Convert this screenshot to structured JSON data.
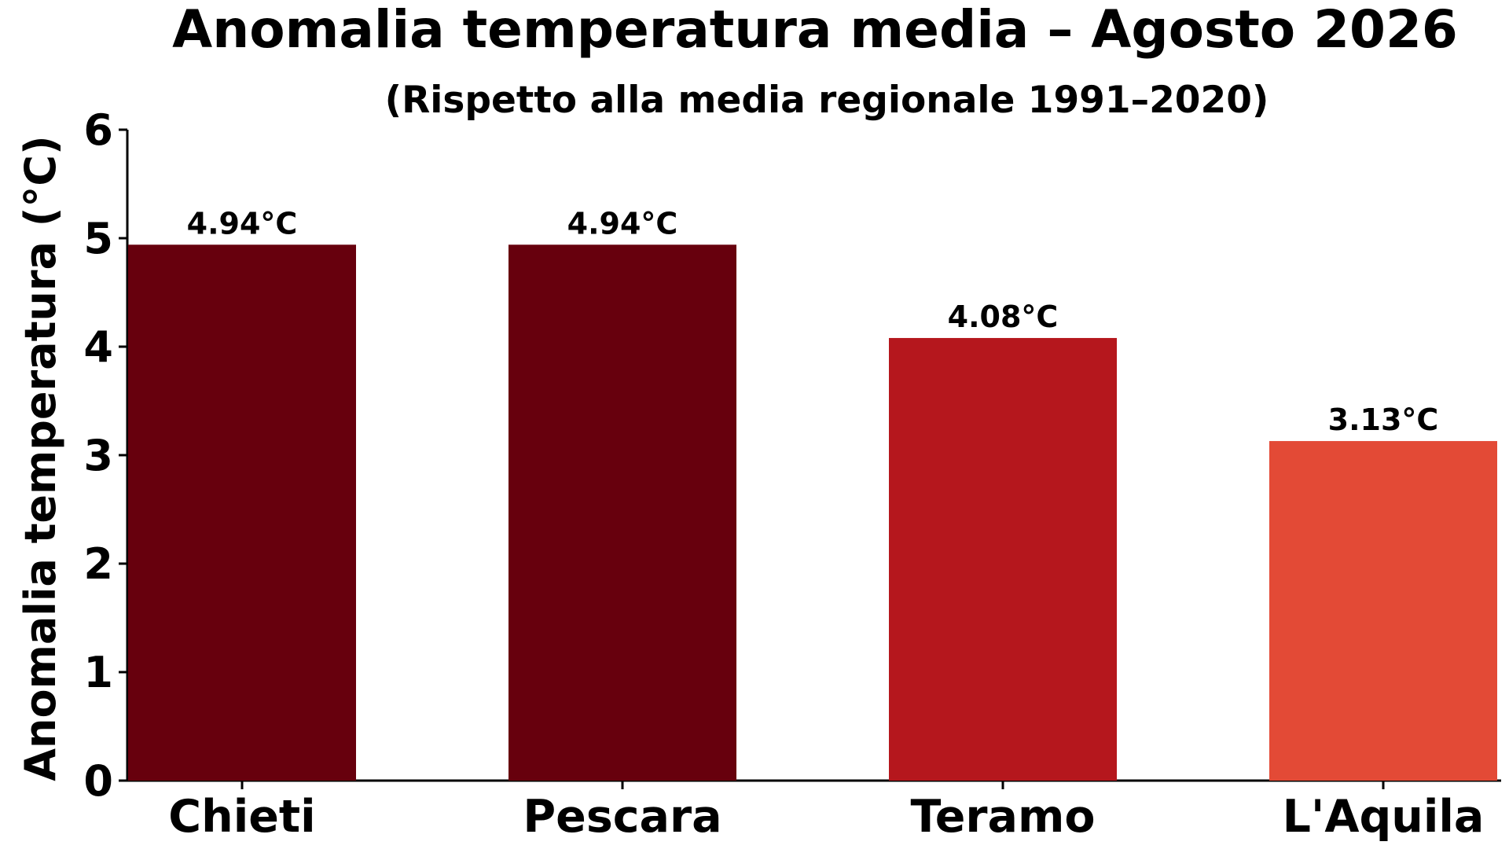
{
  "chart_data": {
    "type": "bar",
    "title": "Anomalia temperatura media – Agosto 2026",
    "subtitle": "(Rispetto alla media regionale 1991–2020)",
    "xlabel": "",
    "ylabel": "Anomalia temperatura (°C)",
    "ylim": [
      0,
      6
    ],
    "yticks": [
      "0",
      "1",
      "2",
      "3",
      "4",
      "5",
      "6"
    ],
    "categories": [
      "Chieti",
      "Pescara",
      "Teramo",
      "L'Aquila"
    ],
    "values": [
      4.94,
      4.94,
      4.08,
      3.13
    ],
    "data_labels": [
      "4.94°C",
      "4.94°C",
      "4.08°C",
      "3.13°C"
    ],
    "colors": [
      "#67000d",
      "#67000d",
      "#b5171d",
      "#e34a36"
    ],
    "grid": false,
    "legend": "none"
  }
}
